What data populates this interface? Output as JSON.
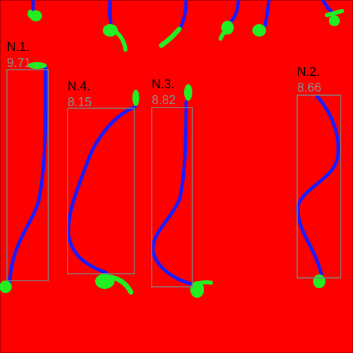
{
  "colors": {
    "background": "#ff0000",
    "root": "#1a1aff",
    "seedling": "#22ee22",
    "box": "#808080",
    "id_text": "#000000",
    "value_text": "#8c8c8c"
  },
  "roots": [
    {
      "id": "N.1.",
      "value": "9.71"
    },
    {
      "id": "N.2.",
      "value": "8.66"
    },
    {
      "id": "N.3.",
      "value": "8.82"
    },
    {
      "id": "N.4.",
      "value": "8.15"
    }
  ]
}
